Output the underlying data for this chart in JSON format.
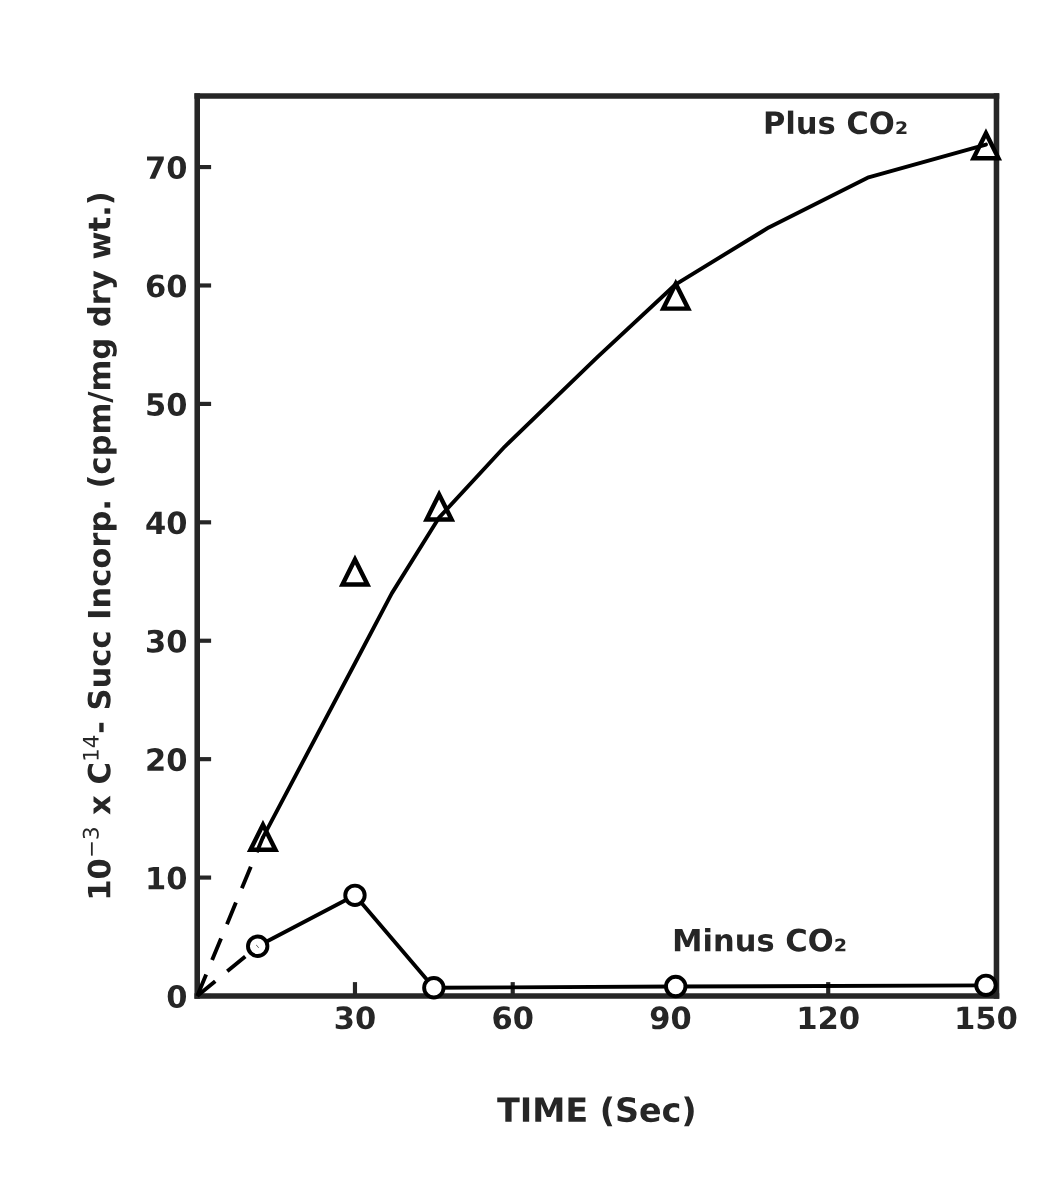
{
  "chart_data": {
    "type": "scatter",
    "xlabel": "TIME (Sec)",
    "ylabel": "10$^{−3}$ x C$^{14}$- Succ Incorp. (cpm/mg dry wt.)",
    "xlim": [
      0,
      152
    ],
    "ylim": [
      0,
      76
    ],
    "xticks": [
      30,
      60,
      90,
      120,
      150
    ],
    "yticks": [
      0,
      10,
      20,
      30,
      40,
      50,
      60,
      70
    ],
    "grid": false,
    "legend": false,
    "series": [
      {
        "name": "Plus CO₂",
        "marker": "triangle",
        "color": "#000000",
        "x": [
          12.5,
          30,
          46,
          91,
          150
        ],
        "values": [
          13.4,
          35.8,
          41.3,
          59.1,
          71.8
        ]
      },
      {
        "type": "line",
        "line_style": "solid",
        "color": "#000000",
        "x": [
          12.5,
          30,
          37,
          46,
          58.5,
          76,
          91,
          108.7,
          127.5,
          150
        ],
        "values": [
          13.4,
          28.1,
          34,
          40.4,
          46.4,
          53.9,
          60.1,
          64.9,
          69.1,
          71.9
        ]
      },
      {
        "type": "line",
        "line_style": "dashed",
        "color": "#000000",
        "x": [
          0,
          12.5
        ],
        "values": [
          0,
          13.4
        ]
      },
      {
        "name": "Minus CO₂",
        "type": "line",
        "marker": "circle",
        "line_style": "solid",
        "color": "#000000",
        "x": [
          11.5,
          30,
          45,
          91,
          150
        ],
        "values": [
          4.2,
          8.5,
          0.7,
          0.8,
          0.9
        ]
      },
      {
        "type": "line",
        "line_style": "dashed",
        "color": "#000000",
        "x": [
          0,
          11.5
        ],
        "values": [
          0,
          4.2
        ]
      }
    ]
  }
}
